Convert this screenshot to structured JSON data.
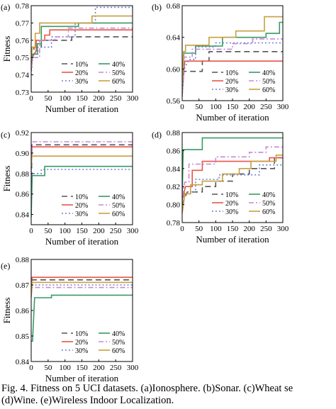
{
  "figure": {
    "caption_line1": "Fig. 4. Fitness on 5 UCI datasets. (a)Ionosphere. (b)Sonar. (c)Wheat se",
    "caption_line2": "(d)Wine. (e)Wireless Indoor Localization."
  },
  "legend_entries": [
    {
      "name": "10%",
      "color": "#555555",
      "dash": "8,5"
    },
    {
      "name": "20%",
      "color": "#e8554a",
      "dash": ""
    },
    {
      "name": "30%",
      "color": "#6b7fd0",
      "dash": "2,3"
    },
    {
      "name": "40%",
      "color": "#3a9a66",
      "dash": ""
    },
    {
      "name": "50%",
      "color": "#c58ad9",
      "dash": "7,3,2,3"
    },
    {
      "name": "60%",
      "color": "#c8a040",
      "dash": ""
    }
  ],
  "chart_data": [
    {
      "type": "line",
      "panel": "(a)",
      "ylabel": "Fitness",
      "xlabel": "Number of iteration",
      "xlim": [
        0,
        300
      ],
      "ylim": [
        0.73,
        0.78
      ],
      "xticks": [
        "0",
        "50",
        "100",
        "150",
        "200",
        "250",
        "300"
      ],
      "yticks": [
        "0.73",
        "0.74",
        "0.75",
        "0.76",
        "0.77",
        "0.78"
      ],
      "legend_position": "bottom-right",
      "series": [
        {
          "name": "10%",
          "points": [
            [
              0,
              0.745
            ],
            [
              2,
              0.752
            ],
            [
              8,
              0.752
            ],
            [
              8,
              0.756
            ],
            [
              30,
              0.756
            ],
            [
              30,
              0.76
            ],
            [
              120,
              0.76
            ],
            [
              120,
              0.762
            ],
            [
              300,
              0.762
            ]
          ]
        },
        {
          "name": "20%",
          "points": [
            [
              0,
              0.742
            ],
            [
              3,
              0.75
            ],
            [
              15,
              0.754
            ],
            [
              15,
              0.76
            ],
            [
              40,
              0.76
            ],
            [
              40,
              0.763
            ],
            [
              55,
              0.763
            ],
            [
              55,
              0.766
            ],
            [
              300,
              0.766
            ]
          ]
        },
        {
          "name": "30%",
          "points": [
            [
              0,
              0.74
            ],
            [
              5,
              0.752
            ],
            [
              20,
              0.752
            ],
            [
              20,
              0.756
            ],
            [
              60,
              0.756
            ],
            [
              60,
              0.762
            ],
            [
              130,
              0.762
            ],
            [
              130,
              0.77
            ],
            [
              190,
              0.77
            ],
            [
              190,
              0.779
            ],
            [
              300,
              0.779
            ]
          ]
        },
        {
          "name": "40%",
          "points": [
            [
              0,
              0.747
            ],
            [
              4,
              0.752
            ],
            [
              18,
              0.752
            ],
            [
              18,
              0.758
            ],
            [
              30,
              0.758
            ],
            [
              30,
              0.768
            ],
            [
              140,
              0.768
            ],
            [
              140,
              0.77
            ],
            [
              300,
              0.77
            ]
          ]
        },
        {
          "name": "50%",
          "points": [
            [
              0,
              0.744
            ],
            [
              6,
              0.75
            ],
            [
              25,
              0.75
            ],
            [
              25,
              0.76
            ],
            [
              70,
              0.76
            ],
            [
              70,
              0.762
            ],
            [
              110,
              0.762
            ],
            [
              110,
              0.767
            ],
            [
              300,
              0.767
            ]
          ]
        },
        {
          "name": "60%",
          "points": [
            [
              0,
              0.748
            ],
            [
              3,
              0.756
            ],
            [
              12,
              0.756
            ],
            [
              12,
              0.764
            ],
            [
              25,
              0.764
            ],
            [
              25,
              0.77
            ],
            [
              180,
              0.77
            ],
            [
              180,
              0.774
            ],
            [
              300,
              0.774
            ]
          ]
        }
      ]
    },
    {
      "type": "line",
      "panel": "(b)",
      "ylabel": "",
      "xlabel": "Number of iteration",
      "xlim": [
        0,
        300
      ],
      "ylim": [
        0.56,
        0.68
      ],
      "xticks": [
        "0",
        "50",
        "100",
        "150",
        "200",
        "250",
        "300"
      ],
      "yticks": [
        "0.56",
        "0.60",
        "0.64",
        "0.68"
      ],
      "legend_position": "bottom-right",
      "series": [
        {
          "name": "10%",
          "points": [
            [
              0,
              0.57
            ],
            [
              5,
              0.597
            ],
            [
              60,
              0.597
            ],
            [
              60,
              0.61
            ],
            [
              80,
              0.61
            ],
            [
              80,
              0.622
            ],
            [
              300,
              0.622
            ]
          ]
        },
        {
          "name": "20%",
          "points": [
            [
              0,
              0.566
            ],
            [
              4,
              0.595
            ],
            [
              8,
              0.61
            ],
            [
              300,
              0.61
            ]
          ]
        },
        {
          "name": "30%",
          "points": [
            [
              0,
              0.565
            ],
            [
              6,
              0.6
            ],
            [
              20,
              0.612
            ],
            [
              40,
              0.612
            ],
            [
              40,
              0.628
            ],
            [
              100,
              0.628
            ],
            [
              100,
              0.633
            ],
            [
              300,
              0.633
            ]
          ]
        },
        {
          "name": "40%",
          "points": [
            [
              0,
              0.575
            ],
            [
              5,
              0.62
            ],
            [
              40,
              0.62
            ],
            [
              40,
              0.629
            ],
            [
              120,
              0.629
            ],
            [
              120,
              0.64
            ],
            [
              250,
              0.64
            ],
            [
              250,
              0.645
            ],
            [
              290,
              0.645
            ],
            [
              290,
              0.659
            ],
            [
              300,
              0.659
            ]
          ]
        },
        {
          "name": "50%",
          "points": [
            [
              0,
              0.572
            ],
            [
              6,
              0.615
            ],
            [
              30,
              0.615
            ],
            [
              30,
              0.625
            ],
            [
              150,
              0.625
            ],
            [
              150,
              0.632
            ],
            [
              210,
              0.632
            ],
            [
              210,
              0.638
            ],
            [
              300,
              0.638
            ]
          ]
        },
        {
          "name": "60%",
          "points": [
            [
              0,
              0.58
            ],
            [
              4,
              0.622
            ],
            [
              10,
              0.622
            ],
            [
              10,
              0.63
            ],
            [
              80,
              0.63
            ],
            [
              80,
              0.64
            ],
            [
              160,
              0.64
            ],
            [
              160,
              0.648
            ],
            [
              245,
              0.648
            ],
            [
              245,
              0.666
            ],
            [
              300,
              0.666
            ]
          ]
        }
      ]
    },
    {
      "type": "line",
      "panel": "(c)",
      "ylabel": "Fitness",
      "xlabel": "Number of iteration",
      "xlim": [
        0,
        300
      ],
      "ylim": [
        0.83,
        0.92
      ],
      "xticks": [
        "0",
        "50",
        "100",
        "150",
        "200",
        "250",
        "300"
      ],
      "yticks": [
        "0.84",
        "0.86",
        "0.88",
        "0.90",
        "0.92"
      ],
      "legend_position": "bottom-right",
      "series": [
        {
          "name": "10%",
          "points": [
            [
              0,
              0.84
            ],
            [
              2,
              0.908
            ],
            [
              300,
              0.908
            ]
          ]
        },
        {
          "name": "20%",
          "points": [
            [
              0,
              0.89
            ],
            [
              3,
              0.906
            ],
            [
              300,
              0.906
            ]
          ]
        },
        {
          "name": "30%",
          "points": [
            [
              0,
              0.85
            ],
            [
              3,
              0.88
            ],
            [
              30,
              0.88
            ],
            [
              30,
              0.884
            ],
            [
              300,
              0.884
            ]
          ]
        },
        {
          "name": "40%",
          "points": [
            [
              0,
              0.837
            ],
            [
              3,
              0.878
            ],
            [
              40,
              0.878
            ],
            [
              40,
              0.887
            ],
            [
              300,
              0.887
            ]
          ]
        },
        {
          "name": "50%",
          "points": [
            [
              0,
              0.88
            ],
            [
              3,
              0.911
            ],
            [
              300,
              0.911
            ]
          ]
        },
        {
          "name": "60%",
          "points": [
            [
              0,
              0.888
            ],
            [
              2,
              0.897
            ],
            [
              300,
              0.897
            ]
          ]
        }
      ]
    },
    {
      "type": "line",
      "panel": "(d)",
      "ylabel": "",
      "xlabel": "Number of iteration",
      "xlim": [
        0,
        300
      ],
      "ylim": [
        0.78,
        0.88
      ],
      "xticks": [
        "0",
        "50",
        "100",
        "150",
        "200",
        "250",
        "300"
      ],
      "yticks": [
        "0.78",
        "0.80",
        "0.82",
        "0.84",
        "0.86",
        "0.88"
      ],
      "legend_position": "bottom-right",
      "series": [
        {
          "name": "10%",
          "points": [
            [
              0,
              0.8
            ],
            [
              15,
              0.814
            ],
            [
              60,
              0.814
            ],
            [
              60,
              0.82
            ],
            [
              100,
              0.82
            ],
            [
              100,
              0.826
            ],
            [
              150,
              0.826
            ],
            [
              150,
              0.834
            ],
            [
              200,
              0.834
            ],
            [
              200,
              0.84
            ],
            [
              275,
              0.84
            ],
            [
              275,
              0.852
            ],
            [
              300,
              0.852
            ]
          ]
        },
        {
          "name": "20%",
          "points": [
            [
              0,
              0.805
            ],
            [
              10,
              0.82
            ],
            [
              30,
              0.82
            ],
            [
              30,
              0.838
            ],
            [
              60,
              0.838
            ],
            [
              60,
              0.848
            ],
            [
              260,
              0.848
            ],
            [
              260,
              0.852
            ],
            [
              300,
              0.852
            ]
          ]
        },
        {
          "name": "30%",
          "points": [
            [
              0,
              0.8
            ],
            [
              10,
              0.814
            ],
            [
              40,
              0.814
            ],
            [
              40,
              0.828
            ],
            [
              110,
              0.828
            ],
            [
              110,
              0.833
            ],
            [
              230,
              0.833
            ],
            [
              230,
              0.844
            ],
            [
              300,
              0.844
            ]
          ]
        },
        {
          "name": "40%",
          "points": [
            [
              0,
              0.805
            ],
            [
              3,
              0.861
            ],
            [
              60,
              0.861
            ],
            [
              60,
              0.874
            ],
            [
              300,
              0.874
            ]
          ]
        },
        {
          "name": "50%",
          "points": [
            [
              0,
              0.81
            ],
            [
              8,
              0.825
            ],
            [
              20,
              0.825
            ],
            [
              20,
              0.845
            ],
            [
              100,
              0.845
            ],
            [
              100,
              0.853
            ],
            [
              200,
              0.853
            ],
            [
              200,
              0.858
            ],
            [
              250,
              0.858
            ],
            [
              250,
              0.864
            ],
            [
              300,
              0.864
            ]
          ]
        },
        {
          "name": "60%",
          "points": [
            [
              0,
              0.79
            ],
            [
              8,
              0.812
            ],
            [
              25,
              0.812
            ],
            [
              25,
              0.822
            ],
            [
              60,
              0.822
            ],
            [
              60,
              0.826
            ],
            [
              120,
              0.826
            ],
            [
              120,
              0.834
            ],
            [
              170,
              0.834
            ],
            [
              170,
              0.84
            ],
            [
              205,
              0.84
            ],
            [
              205,
              0.848
            ],
            [
              280,
              0.848
            ],
            [
              280,
              0.855
            ],
            [
              300,
              0.855
            ]
          ]
        }
      ]
    },
    {
      "type": "line",
      "panel": "(e)",
      "ylabel": "Fitness",
      "xlabel": "Number of iteration",
      "xlim": [
        0,
        300
      ],
      "ylim": [
        0.84,
        0.88
      ],
      "xticks": [
        "0",
        "50",
        "100",
        "150",
        "200",
        "250",
        "300"
      ],
      "yticks": [
        "0.84",
        "0.85",
        "0.86",
        "0.87",
        "0.88"
      ],
      "legend_position": "bottom-right",
      "series": [
        {
          "name": "10%",
          "points": [
            [
              0,
              0.868
            ],
            [
              3,
              0.872
            ],
            [
              300,
              0.872
            ]
          ]
        },
        {
          "name": "20%",
          "points": [
            [
              0,
              0.87
            ],
            [
              3,
              0.873
            ],
            [
              300,
              0.873
            ]
          ]
        },
        {
          "name": "30%",
          "points": [
            [
              0,
              0.867
            ],
            [
              3,
              0.87
            ],
            [
              300,
              0.87
            ]
          ]
        },
        {
          "name": "40%",
          "points": [
            [
              0,
              0.848
            ],
            [
              4,
              0.848
            ],
            [
              10,
              0.865
            ],
            [
              60,
              0.865
            ],
            [
              60,
              0.866
            ],
            [
              300,
              0.866
            ]
          ]
        },
        {
          "name": "50%",
          "points": [
            [
              0,
              0.866
            ],
            [
              3,
              0.869
            ],
            [
              300,
              0.869
            ]
          ]
        },
        {
          "name": "60%",
          "points": [
            [
              0,
              0.865
            ],
            [
              3,
              0.871
            ],
            [
              300,
              0.871
            ]
          ]
        }
      ]
    }
  ]
}
